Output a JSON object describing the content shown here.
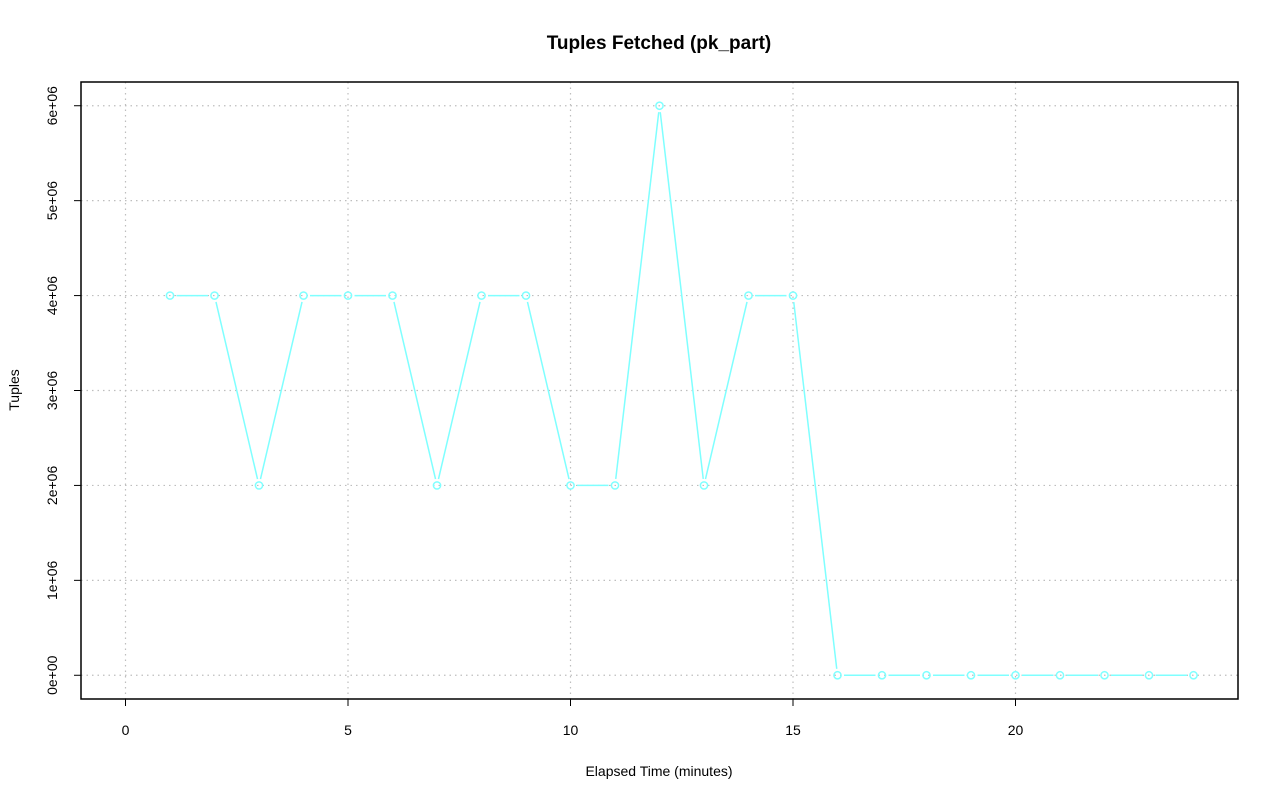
{
  "chart_data": {
    "type": "line",
    "title": "Tuples Fetched (pk_part)",
    "xlabel": "Elapsed Time (minutes)",
    "ylabel": "Tuples",
    "xlim": [
      -1,
      25
    ],
    "ylim": [
      -250000,
      6250000
    ],
    "x_ticks": [
      0,
      5,
      10,
      15,
      20
    ],
    "x_tick_labels": [
      "0",
      "5",
      "10",
      "15",
      "20"
    ],
    "y_ticks": [
      0,
      1000000,
      2000000,
      3000000,
      4000000,
      5000000,
      6000000
    ],
    "y_tick_labels": [
      "0e+00",
      "1e+06",
      "2e+06",
      "3e+06",
      "4e+06",
      "5e+06",
      "6e+06"
    ],
    "grid": true,
    "series_color": "#7fffff",
    "grid_color": "#bebebe",
    "series": [
      {
        "x": [
          1,
          2,
          3,
          4,
          5,
          6,
          7,
          8,
          9,
          10,
          11,
          12,
          13,
          14,
          15,
          16,
          17,
          18,
          19,
          20,
          21,
          22,
          23,
          24
        ],
        "values": [
          4000000,
          4000000,
          2000000,
          4000000,
          4000000,
          4000000,
          2000000,
          4000000,
          4000000,
          2000000,
          2000000,
          6000000,
          2000000,
          4000000,
          4000000,
          0,
          0,
          0,
          0,
          0,
          0,
          0,
          0,
          0
        ]
      }
    ]
  }
}
